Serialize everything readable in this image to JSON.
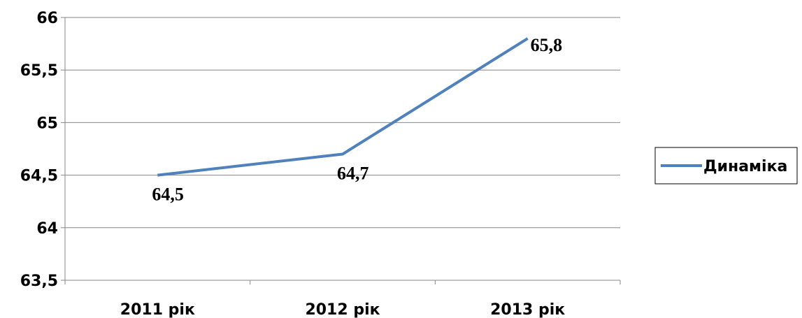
{
  "chart_data": {
    "type": "line",
    "categories": [
      "2011 рік",
      "2012 рік",
      "2013 рік"
    ],
    "series": [
      {
        "name": "Динаміка",
        "values": [
          64.5,
          64.7,
          65.8
        ],
        "data_labels": [
          "64,5",
          "64,7",
          "65,8"
        ],
        "color": "#4F81BD"
      }
    ],
    "y_ticks": [
      "63,5",
      "64",
      "64,5",
      "65",
      "65,5",
      "66"
    ],
    "ylim": [
      63.5,
      66
    ],
    "y_step": 0.5,
    "grid": true,
    "legend_position": "right",
    "title": "",
    "xlabel": "",
    "ylabel": ""
  },
  "colors": {
    "gridline": "#868686",
    "axis": "#868686",
    "series": "#4F81BD",
    "legend_border": "#000000"
  }
}
